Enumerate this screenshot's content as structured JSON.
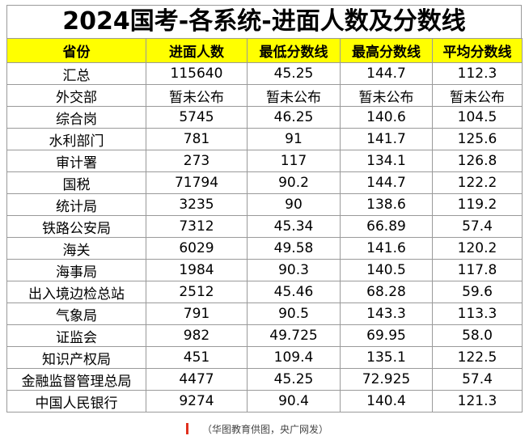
{
  "title": "2024国考-各系统-进面人数及分数线",
  "headers": [
    "省份",
    "进面人数",
    "最低分数线",
    "最高分数线",
    "平均分数线"
  ],
  "rows": [
    [
      "汇总",
      "115640",
      "45.25",
      "144.7",
      "112.3"
    ],
    [
      "外交部",
      "暂未公布",
      "暂未公布",
      "暂未公布",
      "暂未公布"
    ],
    [
      "综合岗",
      "5745",
      "46.25",
      "140.6",
      "104.5"
    ],
    [
      "水利部门",
      "781",
      "91",
      "141.7",
      "125.6"
    ],
    [
      "审计署",
      "273",
      "117",
      "134.1",
      "126.8"
    ],
    [
      "国税",
      "71794",
      "90.2",
      "144.7",
      "122.2"
    ],
    [
      "统计局",
      "3235",
      "90",
      "138.6",
      "119.2"
    ],
    [
      "铁路公安局",
      "7312",
      "45.34",
      "66.89",
      "57.4"
    ],
    [
      "海关",
      "6029",
      "49.58",
      "141.6",
      "120.2"
    ],
    [
      "海事局",
      "1984",
      "90.3",
      "140.5",
      "117.8"
    ],
    [
      "出入境边检总站",
      "2512",
      "45.46",
      "68.28",
      "59.6"
    ],
    [
      "气象局",
      "791",
      "90.5",
      "143.3",
      "113.3"
    ],
    [
      "证监会",
      "982",
      "49.725",
      "69.95",
      "58.0"
    ],
    [
      "知识产权局",
      "451",
      "109.4",
      "135.1",
      "122.5"
    ],
    [
      "金融监督管理总局",
      "4477",
      "45.25",
      "72.925",
      "57.4"
    ],
    [
      "中国人民银行",
      "9274",
      "90.4",
      "140.4",
      "121.3"
    ]
  ],
  "caption": "（华图教育供图，央广网发）",
  "colors": {
    "header_bg": "#ffff00",
    "accent": "#e0301e"
  }
}
